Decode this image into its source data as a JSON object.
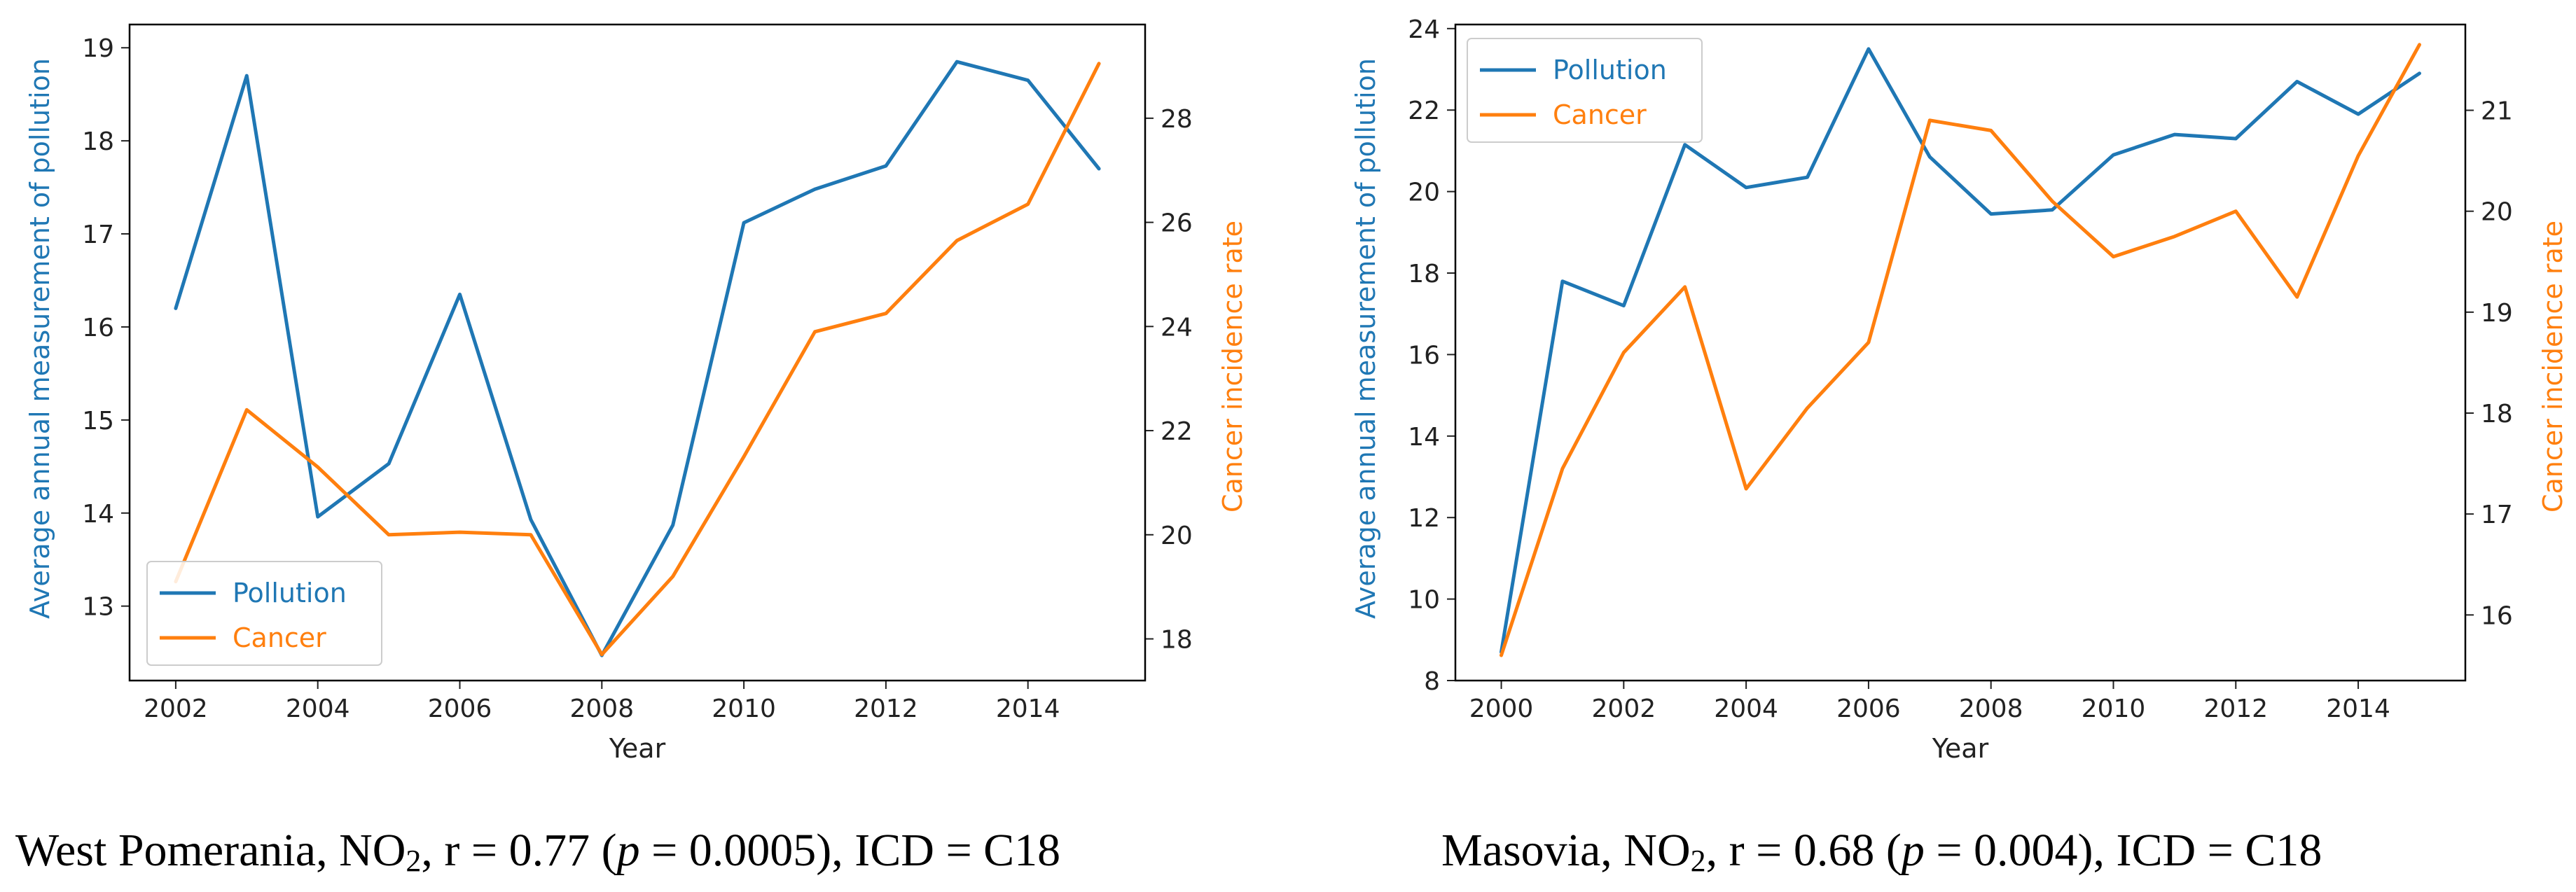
{
  "chart_data": [
    {
      "type": "line",
      "name": "west-pomerania",
      "x": [
        2002,
        2003,
        2004,
        2005,
        2006,
        2007,
        2008,
        2009,
        2010,
        2011,
        2012,
        2013,
        2014,
        2015
      ],
      "xticks": [
        "2002",
        "2004",
        "2006",
        "2008",
        "2010",
        "2012",
        "2014"
      ],
      "xlim": [
        2001.35,
        2015.65
      ],
      "xlabel": "Year",
      "ylabel_left": "Average annual measurement of pollution",
      "ylabel_right": "Cancer incidence rate",
      "ylim_left": [
        12.2,
        19.25
      ],
      "ylim_right": [
        17.2,
        29.8
      ],
      "yticks_left": [
        "13",
        "14",
        "15",
        "16",
        "17",
        "18",
        "19"
      ],
      "yticks_right": [
        "18",
        "20",
        "22",
        "24",
        "26",
        "28"
      ],
      "legend_position": "lower-left",
      "series": [
        {
          "name": "Pollution",
          "axis": "left",
          "color": "#1f77b4",
          "values": [
            16.2,
            18.7,
            13.96,
            14.53,
            16.35,
            13.93,
            12.47,
            13.87,
            17.12,
            17.48,
            17.73,
            18.85,
            18.65,
            17.7
          ]
        },
        {
          "name": "Cancer",
          "axis": "right",
          "color": "#ff7f0e",
          "values": [
            19.1,
            22.4,
            21.3,
            20.0,
            20.05,
            20.0,
            17.7,
            19.2,
            21.5,
            23.9,
            24.25,
            25.65,
            26.35,
            29.05
          ]
        }
      ]
    },
    {
      "type": "line",
      "name": "masovia",
      "x": [
        2000,
        2001,
        2002,
        2003,
        2004,
        2005,
        2006,
        2007,
        2008,
        2009,
        2010,
        2011,
        2012,
        2013,
        2014,
        2015
      ],
      "xticks": [
        "2000",
        "2002",
        "2004",
        "2006",
        "2008",
        "2010",
        "2012",
        "2014"
      ],
      "xlim": [
        1999.25,
        2015.75
      ],
      "xlabel": "Year",
      "ylabel_left": "Average annual measurement of pollution",
      "ylabel_right": "Cancer incidence rate",
      "ylim_left": [
        8.0,
        24.1
      ],
      "ylim_right": [
        15.35,
        21.85
      ],
      "yticks_left": [
        "8",
        "10",
        "12",
        "14",
        "16",
        "18",
        "20",
        "22",
        "24"
      ],
      "yticks_right": [
        "16",
        "17",
        "18",
        "19",
        "20",
        "21"
      ],
      "legend_position": "upper-left",
      "series": [
        {
          "name": "Pollution",
          "axis": "left",
          "color": "#1f77b4",
          "values": [
            8.7,
            17.8,
            17.2,
            21.15,
            20.1,
            20.35,
            23.5,
            20.85,
            19.45,
            19.55,
            20.9,
            21.4,
            21.3,
            22.7,
            21.9,
            22.9
          ]
        },
        {
          "name": "Cancer",
          "axis": "right",
          "color": "#ff7f0e",
          "values": [
            15.6,
            17.45,
            18.6,
            19.25,
            17.25,
            18.05,
            18.7,
            20.9,
            20.8,
            20.1,
            19.55,
            19.75,
            20.0,
            19.15,
            20.55,
            21.65
          ]
        }
      ]
    }
  ],
  "captions": [
    {
      "region": "West Pomerania, NO",
      "sub": "2",
      "r_text": ", r = 0.77 (",
      "p_symbol": "p",
      "p_text": " = 0.0005), ICD = C18"
    },
    {
      "region": "Masovia, NO",
      "sub": "2",
      "r_text": ", r = 0.68 (",
      "p_symbol": "p",
      "p_text": " = 0.004), ICD = C18"
    }
  ]
}
